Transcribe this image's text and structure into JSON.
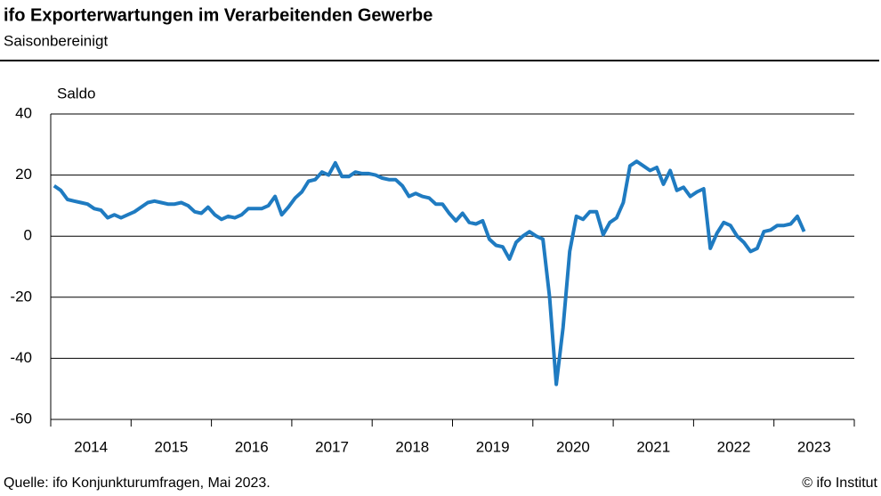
{
  "chart_data": {
    "type": "line",
    "title": "ifo Exporterwartungen im Verarbeitenden Gewerbe",
    "subtitle": "Saisonbereinigt",
    "ylabel": "Saldo",
    "source": "Quelle:  ifo Konjunkturumfragen,  Mai 2023.",
    "copyright": "© ifo Institut",
    "categories": [
      "2014",
      null,
      null,
      null,
      null,
      null,
      null,
      null,
      null,
      null,
      null,
      null,
      "2015",
      null,
      null,
      null,
      null,
      null,
      null,
      null,
      null,
      null,
      null,
      null,
      "2016",
      null,
      null,
      null,
      null,
      null,
      null,
      null,
      null,
      null,
      null,
      null,
      "2017",
      null,
      null,
      null,
      null,
      null,
      null,
      null,
      null,
      null,
      null,
      null,
      "2018",
      null,
      null,
      null,
      null,
      null,
      null,
      null,
      null,
      null,
      null,
      null,
      "2019",
      null,
      null,
      null,
      null,
      null,
      null,
      null,
      null,
      null,
      null,
      null,
      "2020",
      null,
      null,
      null,
      null,
      null,
      null,
      null,
      null,
      null,
      null,
      null,
      "2021",
      null,
      null,
      null,
      null,
      null,
      null,
      null,
      null,
      null,
      null,
      null,
      "2022",
      null,
      null,
      null,
      null,
      null,
      null,
      null,
      null,
      null,
      null,
      null,
      "2023",
      null,
      null,
      null,
      null
    ],
    "series": [
      {
        "color": "#1f7bc1",
        "values": [
          16.5,
          15,
          12,
          11.5,
          11,
          10.5,
          9,
          8.5,
          6,
          7,
          6,
          7,
          8,
          9.5,
          11,
          11.5,
          11,
          10.5,
          10.5,
          11,
          10,
          8,
          7.5,
          9.5,
          7,
          5.5,
          6.5,
          6,
          7,
          9,
          9,
          9,
          10,
          13,
          7,
          9.5,
          12.5,
          14.5,
          18,
          18.5,
          21,
          20,
          24,
          19.5,
          19.5,
          21,
          20.5,
          20.5,
          20,
          19,
          18.5,
          18.5,
          16.5,
          13,
          14,
          13,
          12.5,
          10.5,
          10.5,
          7.5,
          5,
          7.5,
          4.5,
          4,
          5,
          -1,
          -3,
          -3.5,
          -7.5,
          -2,
          0,
          1.5,
          0,
          -1,
          -20,
          -48.5,
          -30,
          -5,
          6.5,
          5.5,
          8,
          8,
          0.5,
          4.5,
          6,
          11,
          23,
          24.5,
          23,
          21.5,
          22.5,
          17,
          21.5,
          15,
          16,
          13,
          14.5,
          15.5,
          -4,
          1,
          4.5,
          3.5,
          0,
          -2,
          -5,
          -4,
          1.5,
          2,
          3.5,
          3.5,
          4,
          6.5,
          1.5
        ]
      }
    ],
    "ylim": [
      -60,
      40
    ],
    "yticks": [
      40,
      20,
      0,
      -20,
      -40,
      -60
    ],
    "grid": true
  }
}
